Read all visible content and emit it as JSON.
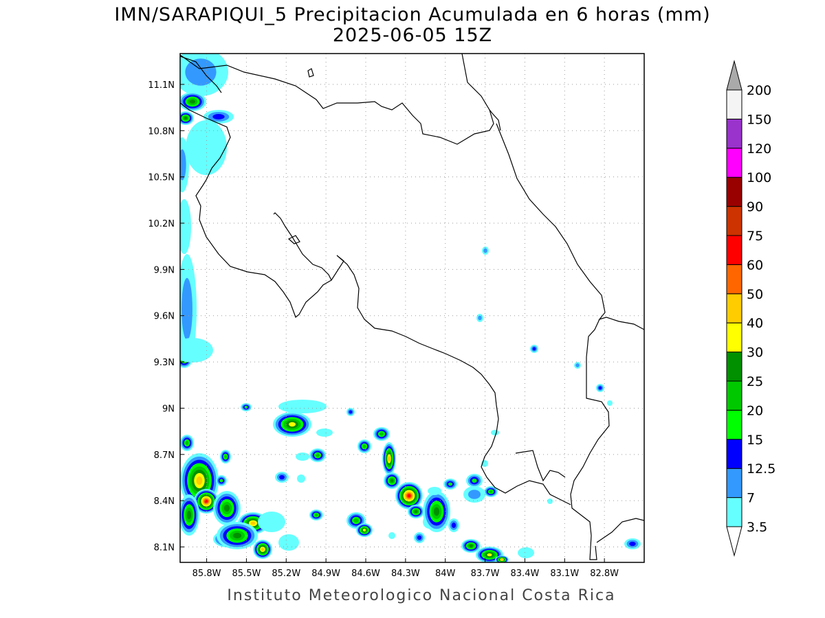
{
  "title": {
    "line1": "IMN/SARAPIQUI_5 Precipitacion Acumulada en 6 horas (mm)",
    "line2": "2025-06-05 15Z"
  },
  "footer": "Instituto Meteorologico Nacional Costa Rica",
  "map": {
    "lon_range": [
      -86.0,
      -82.5
    ],
    "lat_range": [
      8.0,
      11.3
    ],
    "lon_ticks": [
      {
        "value": -85.8,
        "label": "85.8W"
      },
      {
        "value": -85.5,
        "label": "85.5W"
      },
      {
        "value": -85.2,
        "label": "85.2W"
      },
      {
        "value": -84.9,
        "label": "84.9W"
      },
      {
        "value": -84.6,
        "label": "84.6W"
      },
      {
        "value": -84.3,
        "label": "84.3W"
      },
      {
        "value": -84.0,
        "label": "84W"
      },
      {
        "value": -83.7,
        "label": "83.7W"
      },
      {
        "value": -83.4,
        "label": "83.4W"
      },
      {
        "value": -83.1,
        "label": "83.1W"
      },
      {
        "value": -82.8,
        "label": "82.8W"
      }
    ],
    "lat_ticks": [
      {
        "value": 8.1,
        "label": "8.1N"
      },
      {
        "value": 8.4,
        "label": "8.4N"
      },
      {
        "value": 8.7,
        "label": "8.7N"
      },
      {
        "value": 9.0,
        "label": "9N"
      },
      {
        "value": 9.3,
        "label": "9.3N"
      },
      {
        "value": 9.6,
        "label": "9.6N"
      },
      {
        "value": 9.9,
        "label": "9.9N"
      },
      {
        "value": 10.2,
        "label": "10.2N"
      },
      {
        "value": 10.5,
        "label": "10.5N"
      },
      {
        "value": 10.8,
        "label": "10.8N"
      },
      {
        "value": 11.1,
        "label": "11.1N"
      }
    ],
    "grid": true
  },
  "colorbar": {
    "levels": [
      "3.5",
      "7",
      "12.5",
      "15",
      "20",
      "25",
      "30",
      "40",
      "50",
      "60",
      "75",
      "90",
      "100",
      "120",
      "150",
      "200"
    ],
    "colors": [
      "#66ffff",
      "#3399ff",
      "#0000ff",
      "#00ff00",
      "#00c800",
      "#009000",
      "#ffff00",
      "#ffcc00",
      "#ff6600",
      "#ff0000",
      "#cc3300",
      "#990000",
      "#ff00ff",
      "#9933cc",
      "#f4f4f4"
    ],
    "upper_arrow_color": "#aaaaaa",
    "lower_arrow_color": "#ffffff"
  }
}
